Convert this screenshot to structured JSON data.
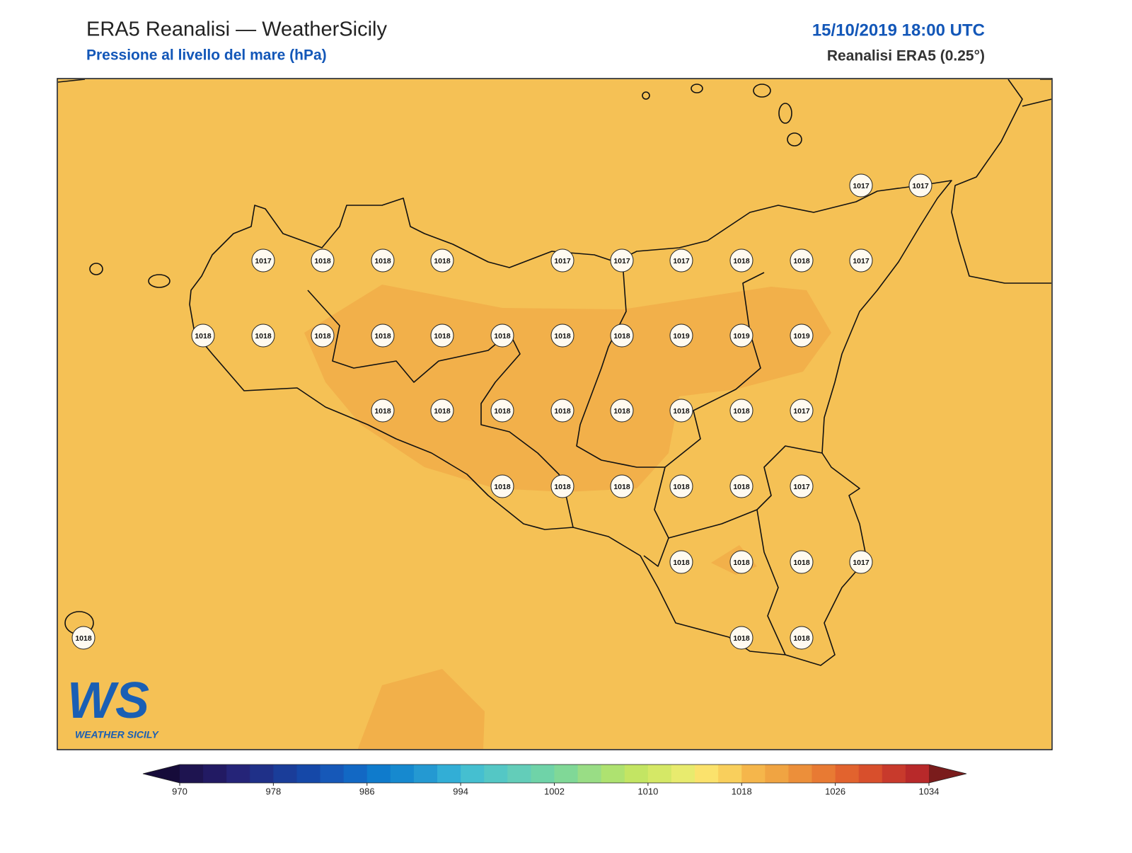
{
  "header": {
    "title": "ERA5 Reanalisi — WeatherSicily",
    "subtitle": "Pressione al livello del mare (hPa)",
    "datetime": "15/10/2019 18:00 UTC",
    "source": "Reanalisi ERA5 (0.25°)"
  },
  "map": {
    "background": "#f5c155",
    "high_area_color": "#f2b04a",
    "stations": [
      1017,
      1017,
      1017,
      1018,
      1018,
      1018,
      1017,
      1017,
      1017,
      1018,
      1018,
      1017,
      1018,
      1018,
      1018,
      1018,
      1018,
      1018,
      1018,
      1018,
      1019,
      1019,
      1019,
      1018,
      1018,
      1018,
      1018,
      1018,
      1018,
      1018,
      1017,
      1018,
      1018,
      1018,
      1018,
      1018,
      1017,
      1018,
      1018,
      1018,
      1017,
      1018,
      1018,
      1018
    ]
  },
  "colorbar": {
    "ticks": [
      970,
      978,
      986,
      994,
      1002,
      1010,
      1018,
      1026,
      1034
    ],
    "colors": [
      "#1e1450",
      "#221a63",
      "#252478",
      "#1f3088",
      "#1a3d99",
      "#1548a8",
      "#1658b8",
      "#1268c4",
      "#0f7bcc",
      "#1689cf",
      "#2499d2",
      "#32aed6",
      "#45bfd0",
      "#54c7c5",
      "#63cdb9",
      "#6fd3a8",
      "#80d897",
      "#99dd85",
      "#aee270",
      "#c3e563",
      "#d5e866",
      "#e8eb6e",
      "#fbe26c",
      "#f9cf5c",
      "#f5b64b",
      "#f0a442",
      "#ec8f3a",
      "#e87a33",
      "#e2632e",
      "#d84f2c",
      "#c83a2c",
      "#b8292a"
    ],
    "under_color": "#160b3a",
    "over_color": "#7a1c1c"
  },
  "logo": {
    "mark": "WS",
    "name": "WEATHER SICILY"
  }
}
